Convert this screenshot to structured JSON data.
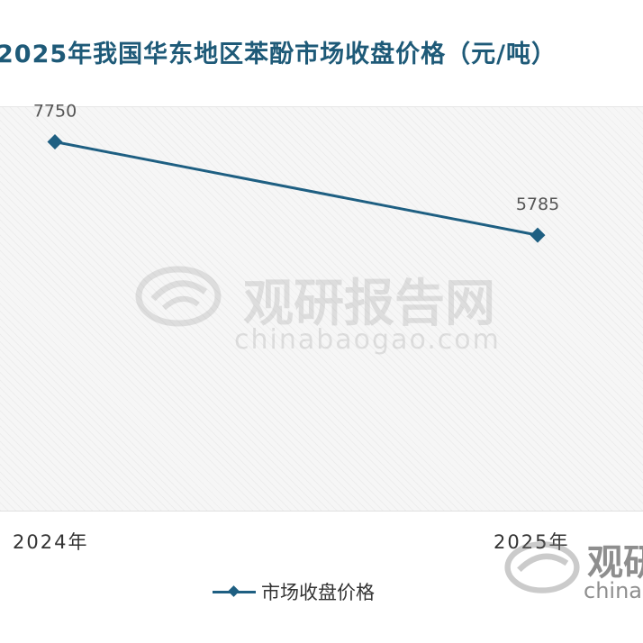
{
  "title": "2025年我国华东地区苯酚市场收盘价格（元/吨）",
  "watermark": {
    "name_cn": "观研报告网",
    "domain": "chinabaogao.com",
    "corner_cn": "观研",
    "corner_en": "china"
  },
  "colors": {
    "series": "#1e5f82",
    "title": "#1e5a78"
  },
  "chart_data": {
    "type": "line",
    "title": "2025年我国华东地区苯酚市场收盘价格（元/吨）",
    "categories": [
      "2024年",
      "2025年"
    ],
    "series": [
      {
        "name": "市场收盘价格",
        "values": [
          7750,
          5785
        ],
        "data_labels": [
          "7750",
          "5785"
        ]
      }
    ],
    "ylim": [
      0,
      8500
    ],
    "grid": false,
    "legend": "bottom"
  }
}
